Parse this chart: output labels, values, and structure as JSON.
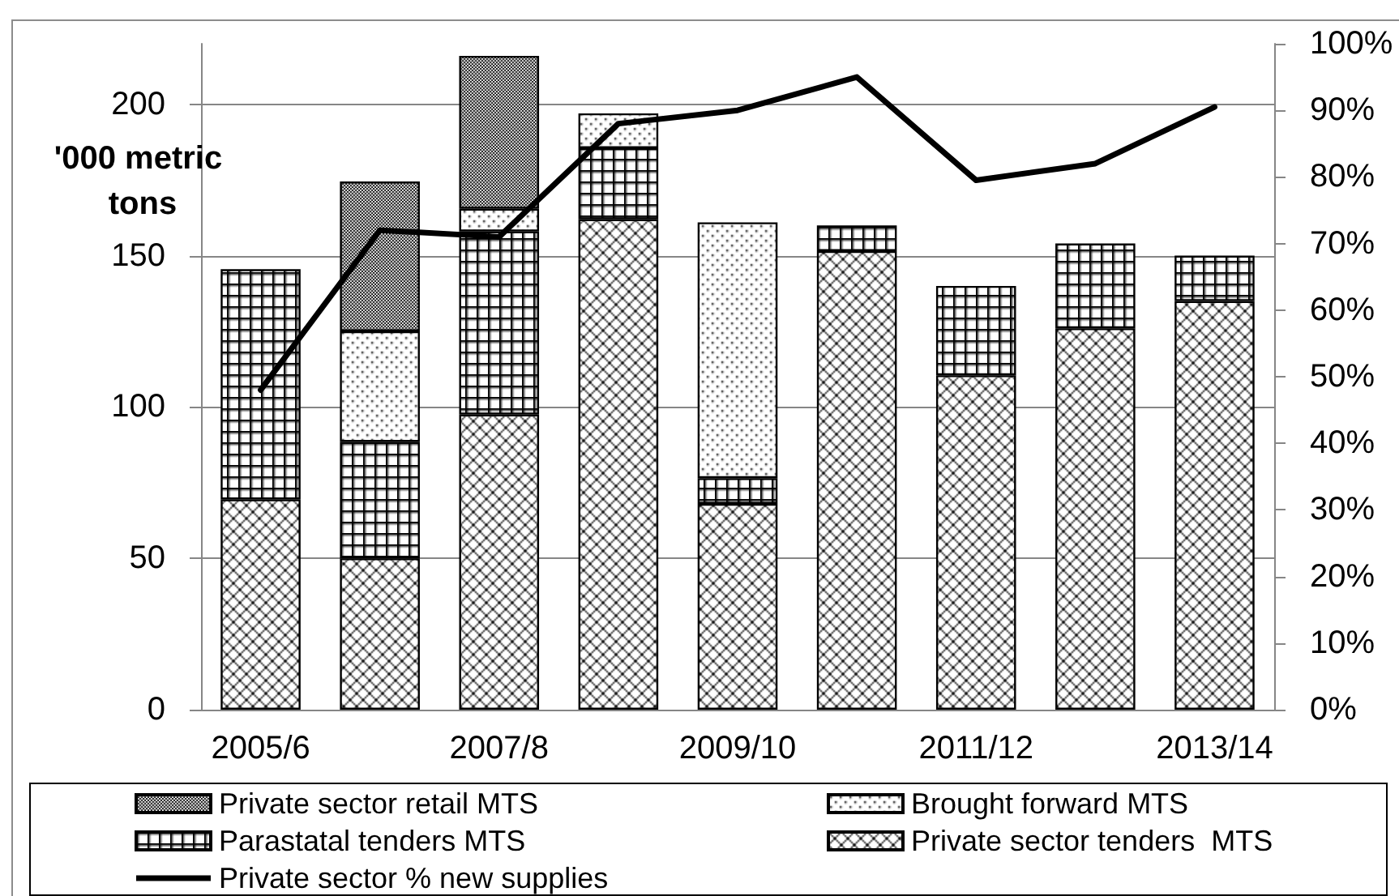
{
  "chart_data": {
    "type": "bar",
    "stacked": true,
    "ylabel": "'000 metric tons",
    "categories": [
      "2005/6",
      null,
      "2007/8",
      null,
      "2009/10",
      null,
      "2011/12",
      null,
      "2013/14"
    ],
    "series": [
      {
        "name": "Private sector tenders  MTS",
        "color": "#000000",
        "values": [
          69.5,
          50,
          97.5,
          162,
          68,
          151.5,
          110.5,
          126,
          135
        ]
      },
      {
        "name": "Parastatal tenders MTS",
        "color": "#000000",
        "values": [
          76,
          38.5,
          60.5,
          23.5,
          8.5,
          8.5,
          29.5,
          28,
          15
        ]
      },
      {
        "name": "Brought forward MTS",
        "color": "#000000",
        "values": [
          null,
          36.5,
          7.5,
          11.5,
          84.5,
          null,
          null,
          null,
          null
        ]
      },
      {
        "name": "Private sector retail MTS",
        "color": "#000000",
        "values": [
          null,
          49.5,
          50.5,
          null,
          null,
          null,
          null,
          null,
          null
        ]
      },
      {
        "name": "Private sector % new supplies",
        "type": "line",
        "axis": "y2",
        "color": "#000000",
        "values": [
          48,
          72,
          71,
          88,
          90,
          95,
          79.5,
          82,
          90.5
        ]
      }
    ],
    "ylim": [
      0,
      220
    ],
    "yticks": [
      0,
      50,
      100,
      150,
      200
    ],
    "y2lim": [
      0,
      100
    ],
    "y2ticks": [
      {
        "value": 0,
        "label": "0%"
      },
      {
        "value": 10,
        "label": "10%"
      },
      {
        "value": 20,
        "label": "20%"
      },
      {
        "value": 30,
        "label": "30%"
      },
      {
        "value": 40,
        "label": "40%"
      },
      {
        "value": 50,
        "label": "50%"
      },
      {
        "value": 60,
        "label": "60%"
      },
      {
        "value": 70,
        "label": "70%"
      },
      {
        "value": 80,
        "label": "80%"
      },
      {
        "value": 90,
        "label": "90%"
      },
      {
        "value": 100,
        "label": "100%"
      }
    ],
    "grid": "y",
    "legend": "bottom",
    "marker": "none"
  }
}
